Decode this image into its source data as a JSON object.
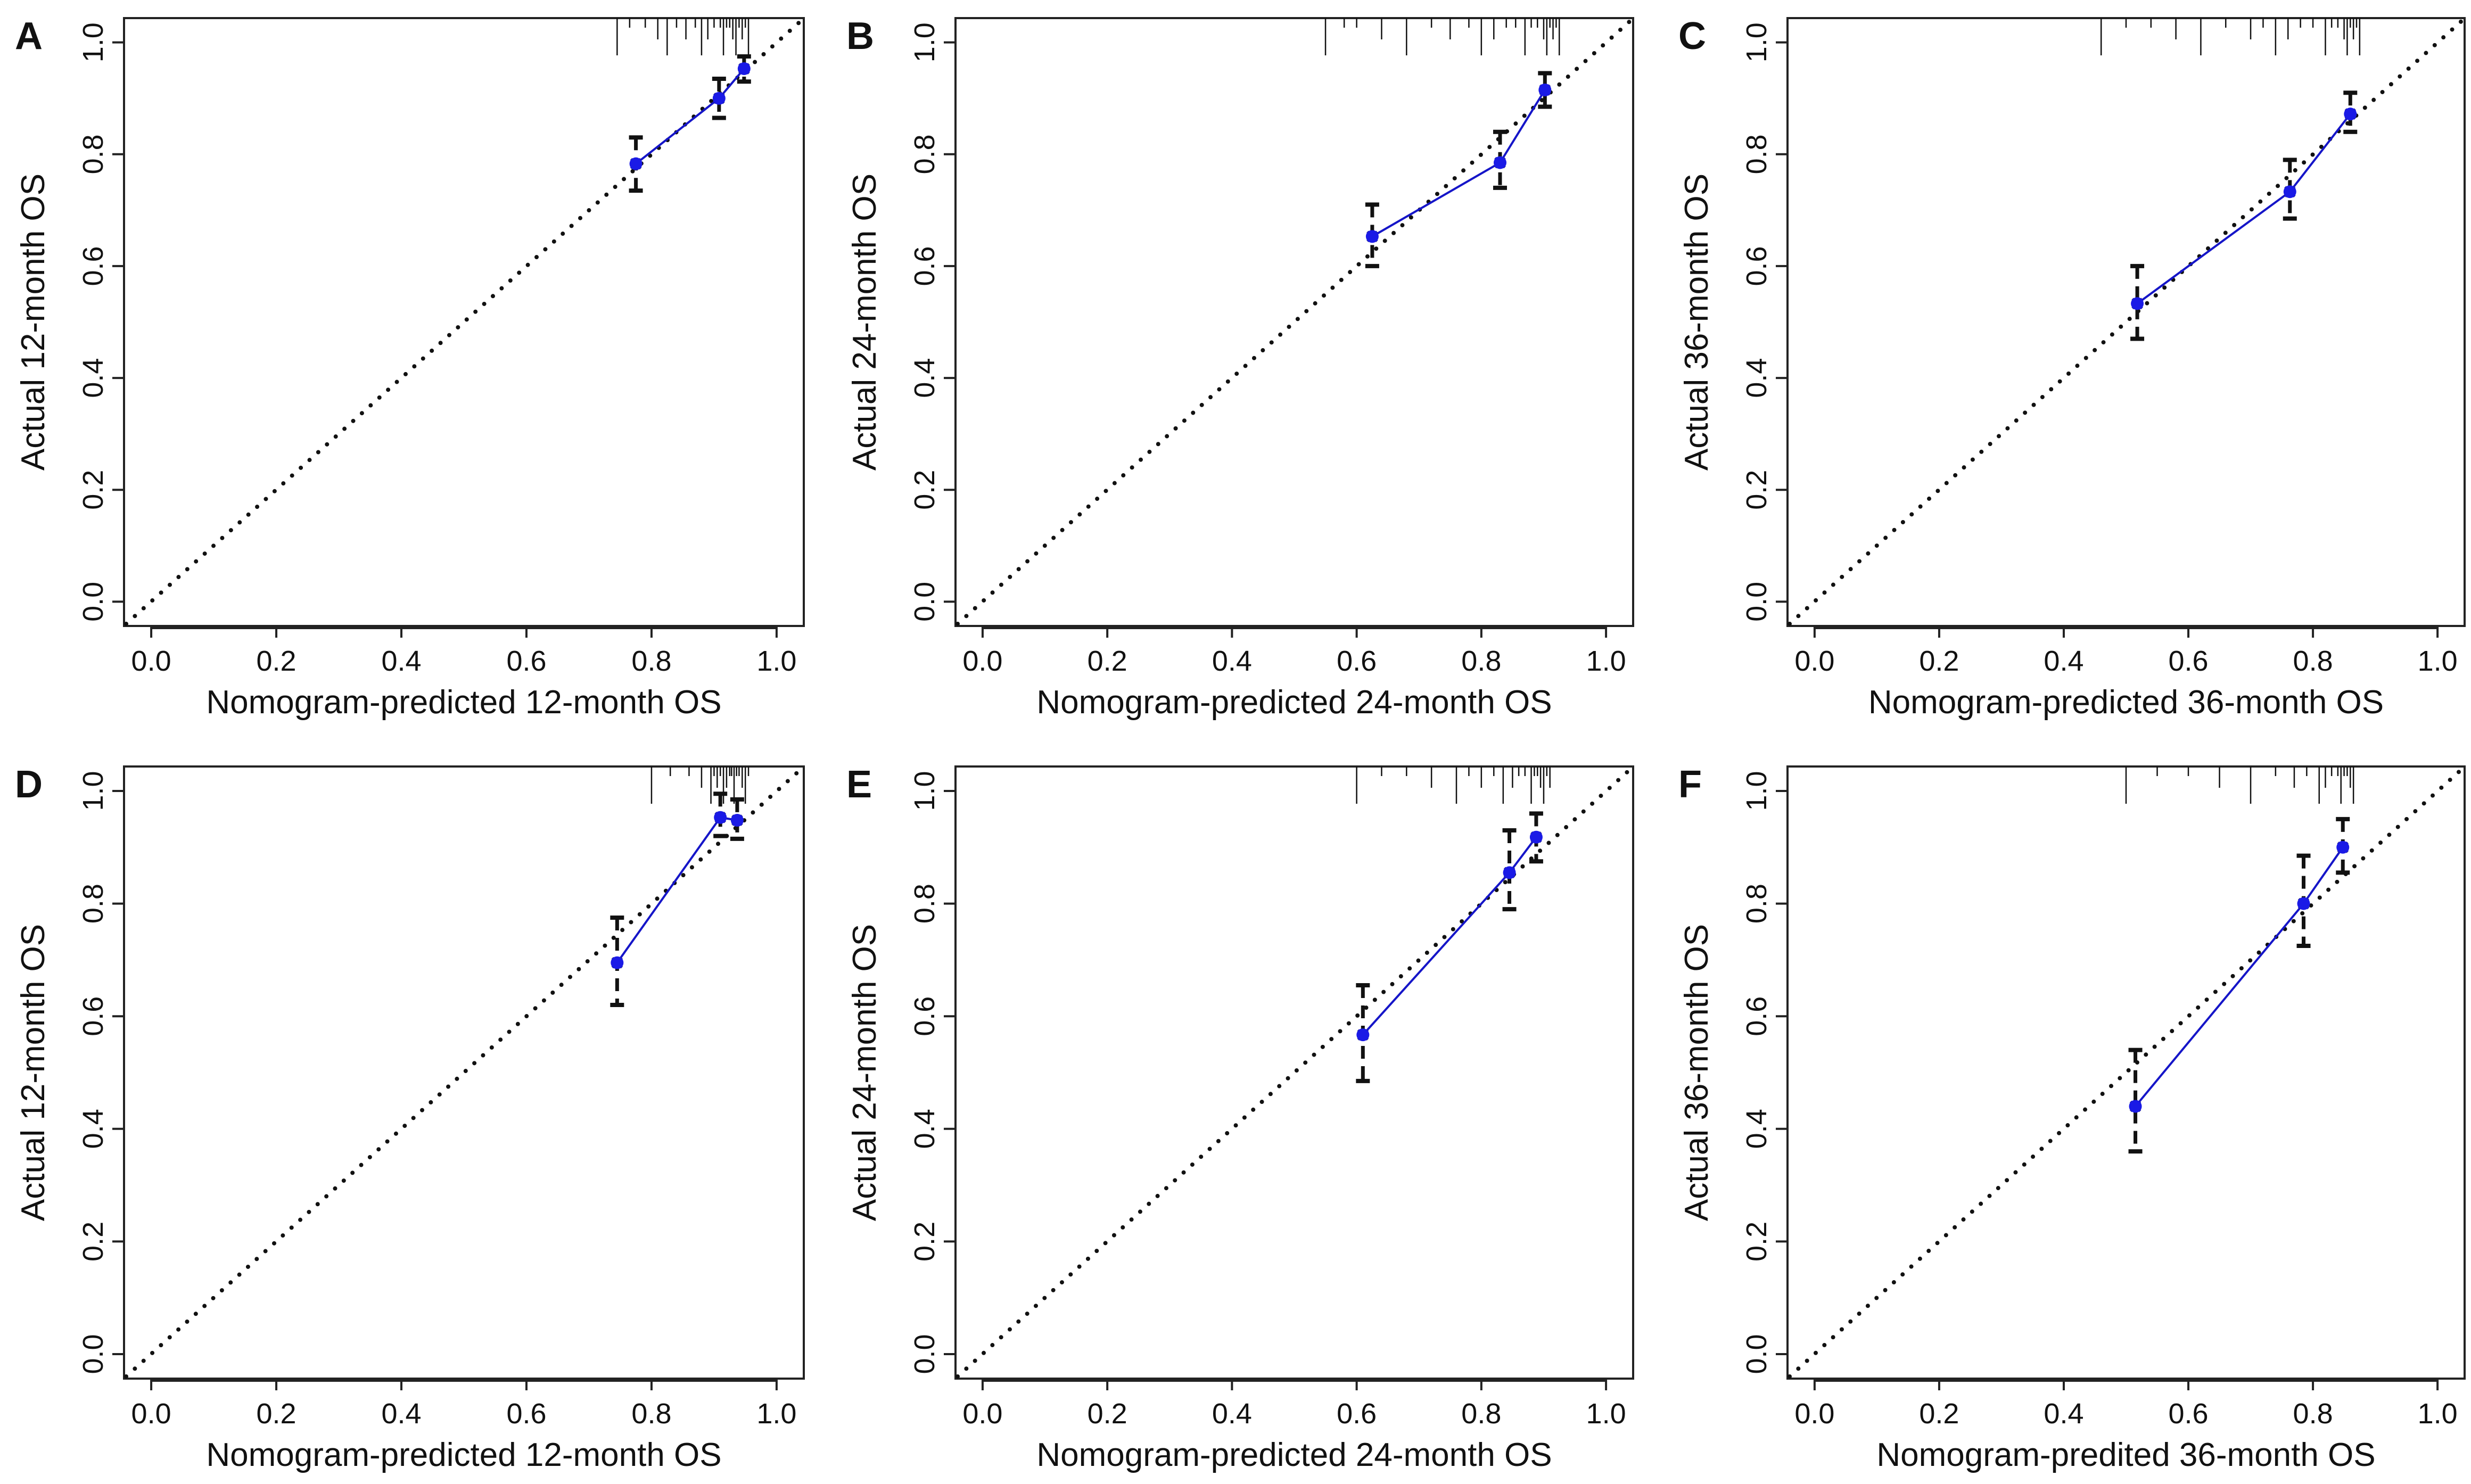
{
  "colors": {
    "series": "#1a1ae6",
    "ink": "#111111",
    "background": "#ffffff"
  },
  "chart_data": [
    {
      "type": "scatter",
      "panel": "A",
      "xlabel": "Nomogram-predicted 12-month OS",
      "ylabel": "Actual 12-month OS",
      "xlim": [
        0,
        1
      ],
      "ylim": [
        0,
        1
      ],
      "x_ticks": [
        "0.0",
        "0.2",
        "0.4",
        "0.6",
        "0.8",
        "1.0"
      ],
      "y_ticks": [
        "0.0",
        "0.2",
        "0.4",
        "0.6",
        "0.8",
        "1.0"
      ],
      "reference_line": "ideal (x = y)",
      "points": [
        {
          "x": 0.775,
          "y": 0.783,
          "lower": 0.735,
          "upper": 0.83
        },
        {
          "x": 0.908,
          "y": 0.9,
          "lower": 0.865,
          "upper": 0.935
        },
        {
          "x": 0.948,
          "y": 0.953,
          "lower": 0.93,
          "upper": 0.975
        }
      ],
      "rug": [
        0.745,
        0.765,
        0.79,
        0.81,
        0.825,
        0.84,
        0.855,
        0.87,
        0.88,
        0.89,
        0.9,
        0.91,
        0.915,
        0.92,
        0.925,
        0.93,
        0.935,
        0.94,
        0.945,
        0.95,
        0.955
      ]
    },
    {
      "type": "scatter",
      "panel": "B",
      "xlabel": "Nomogram-predicted 24-month OS",
      "ylabel": "Actual 24-month OS",
      "xlim": [
        0,
        1
      ],
      "ylim": [
        0,
        1
      ],
      "x_ticks": [
        "0.0",
        "0.2",
        "0.4",
        "0.6",
        "0.8",
        "1.0"
      ],
      "y_ticks": [
        "0.0",
        "0.2",
        "0.4",
        "0.6",
        "0.8",
        "1.0"
      ],
      "reference_line": "ideal (x = y)",
      "points": [
        {
          "x": 0.625,
          "y": 0.653,
          "lower": 0.6,
          "upper": 0.71
        },
        {
          "x": 0.83,
          "y": 0.785,
          "lower": 0.74,
          "upper": 0.84
        },
        {
          "x": 0.902,
          "y": 0.915,
          "lower": 0.885,
          "upper": 0.945
        }
      ],
      "rug": [
        0.55,
        0.58,
        0.6,
        0.64,
        0.68,
        0.72,
        0.75,
        0.78,
        0.8,
        0.82,
        0.84,
        0.855,
        0.87,
        0.88,
        0.89,
        0.9,
        0.905,
        0.91,
        0.915,
        0.92,
        0.925
      ]
    },
    {
      "type": "scatter",
      "panel": "C",
      "xlabel": "Nomogram-predicted 36-month OS",
      "ylabel": "Actual 36-month OS",
      "xlim": [
        0,
        1
      ],
      "ylim": [
        0,
        1
      ],
      "x_ticks": [
        "0.0",
        "0.2",
        "0.4",
        "0.6",
        "0.8",
        "1.0"
      ],
      "y_ticks": [
        "0.0",
        "0.2",
        "0.4",
        "0.6",
        "0.8",
        "1.0"
      ],
      "reference_line": "ideal (x = y)",
      "points": [
        {
          "x": 0.518,
          "y": 0.533,
          "lower": 0.47,
          "upper": 0.6
        },
        {
          "x": 0.763,
          "y": 0.733,
          "lower": 0.685,
          "upper": 0.79
        },
        {
          "x": 0.86,
          "y": 0.872,
          "lower": 0.84,
          "upper": 0.91
        }
      ],
      "rug": [
        0.46,
        0.5,
        0.54,
        0.58,
        0.62,
        0.66,
        0.7,
        0.72,
        0.74,
        0.76,
        0.78,
        0.8,
        0.82,
        0.83,
        0.84,
        0.85,
        0.855,
        0.86,
        0.865,
        0.87,
        0.875
      ]
    },
    {
      "type": "scatter",
      "panel": "D",
      "xlabel": "Nomogram-predicted 12-month OS",
      "ylabel": "Actual 12-month OS",
      "xlim": [
        0,
        1
      ],
      "ylim": [
        0,
        1
      ],
      "x_ticks": [
        "0.0",
        "0.2",
        "0.4",
        "0.6",
        "0.8",
        "1.0"
      ],
      "y_ticks": [
        "0.0",
        "0.2",
        "0.4",
        "0.6",
        "0.8",
        "1.0"
      ],
      "reference_line": "ideal (x = y)",
      "points": [
        {
          "x": 0.745,
          "y": 0.695,
          "lower": 0.62,
          "upper": 0.775
        },
        {
          "x": 0.91,
          "y": 0.953,
          "lower": 0.92,
          "upper": 0.995
        },
        {
          "x": 0.937,
          "y": 0.948,
          "lower": 0.915,
          "upper": 0.985
        }
      ],
      "rug": [
        0.8,
        0.83,
        0.86,
        0.88,
        0.895,
        0.9,
        0.905,
        0.91,
        0.915,
        0.92,
        0.925,
        0.928,
        0.932,
        0.936,
        0.94,
        0.945,
        0.95,
        0.955
      ]
    },
    {
      "type": "scatter",
      "panel": "E",
      "xlabel": "Nomogram-predicted 24-month OS",
      "ylabel": "Actual 24-month OS",
      "xlim": [
        0,
        1
      ],
      "ylim": [
        0,
        1
      ],
      "x_ticks": [
        "0.0",
        "0.2",
        "0.4",
        "0.6",
        "0.8",
        "1.0"
      ],
      "y_ticks": [
        "0.0",
        "0.2",
        "0.4",
        "0.6",
        "0.8",
        "1.0"
      ],
      "reference_line": "ideal (x = y)",
      "points": [
        {
          "x": 0.61,
          "y": 0.567,
          "lower": 0.485,
          "upper": 0.655
        },
        {
          "x": 0.845,
          "y": 0.855,
          "lower": 0.79,
          "upper": 0.93
        },
        {
          "x": 0.888,
          "y": 0.918,
          "lower": 0.875,
          "upper": 0.96
        }
      ],
      "rug": [
        0.6,
        0.64,
        0.68,
        0.72,
        0.76,
        0.78,
        0.8,
        0.82,
        0.835,
        0.85,
        0.86,
        0.87,
        0.88,
        0.885,
        0.89,
        0.895,
        0.9,
        0.905,
        0.91
      ]
    },
    {
      "type": "scatter",
      "panel": "F",
      "xlabel": "Nomogram-predited 36-month OS",
      "ylabel": "Actual 36-month OS",
      "xlim": [
        0,
        1
      ],
      "ylim": [
        0,
        1
      ],
      "x_ticks": [
        "0.0",
        "0.2",
        "0.4",
        "0.6",
        "0.8",
        "1.0"
      ],
      "y_ticks": [
        "0.0",
        "0.2",
        "0.4",
        "0.6",
        "0.8",
        "1.0"
      ],
      "reference_line": "ideal (x = y)",
      "points": [
        {
          "x": 0.515,
          "y": 0.44,
          "lower": 0.36,
          "upper": 0.54
        },
        {
          "x": 0.785,
          "y": 0.8,
          "lower": 0.725,
          "upper": 0.885
        },
        {
          "x": 0.848,
          "y": 0.9,
          "lower": 0.855,
          "upper": 0.95
        }
      ],
      "rug": [
        0.5,
        0.55,
        0.6,
        0.65,
        0.7,
        0.74,
        0.77,
        0.79,
        0.81,
        0.82,
        0.83,
        0.84,
        0.845,
        0.85,
        0.855,
        0.86,
        0.865
      ]
    }
  ]
}
